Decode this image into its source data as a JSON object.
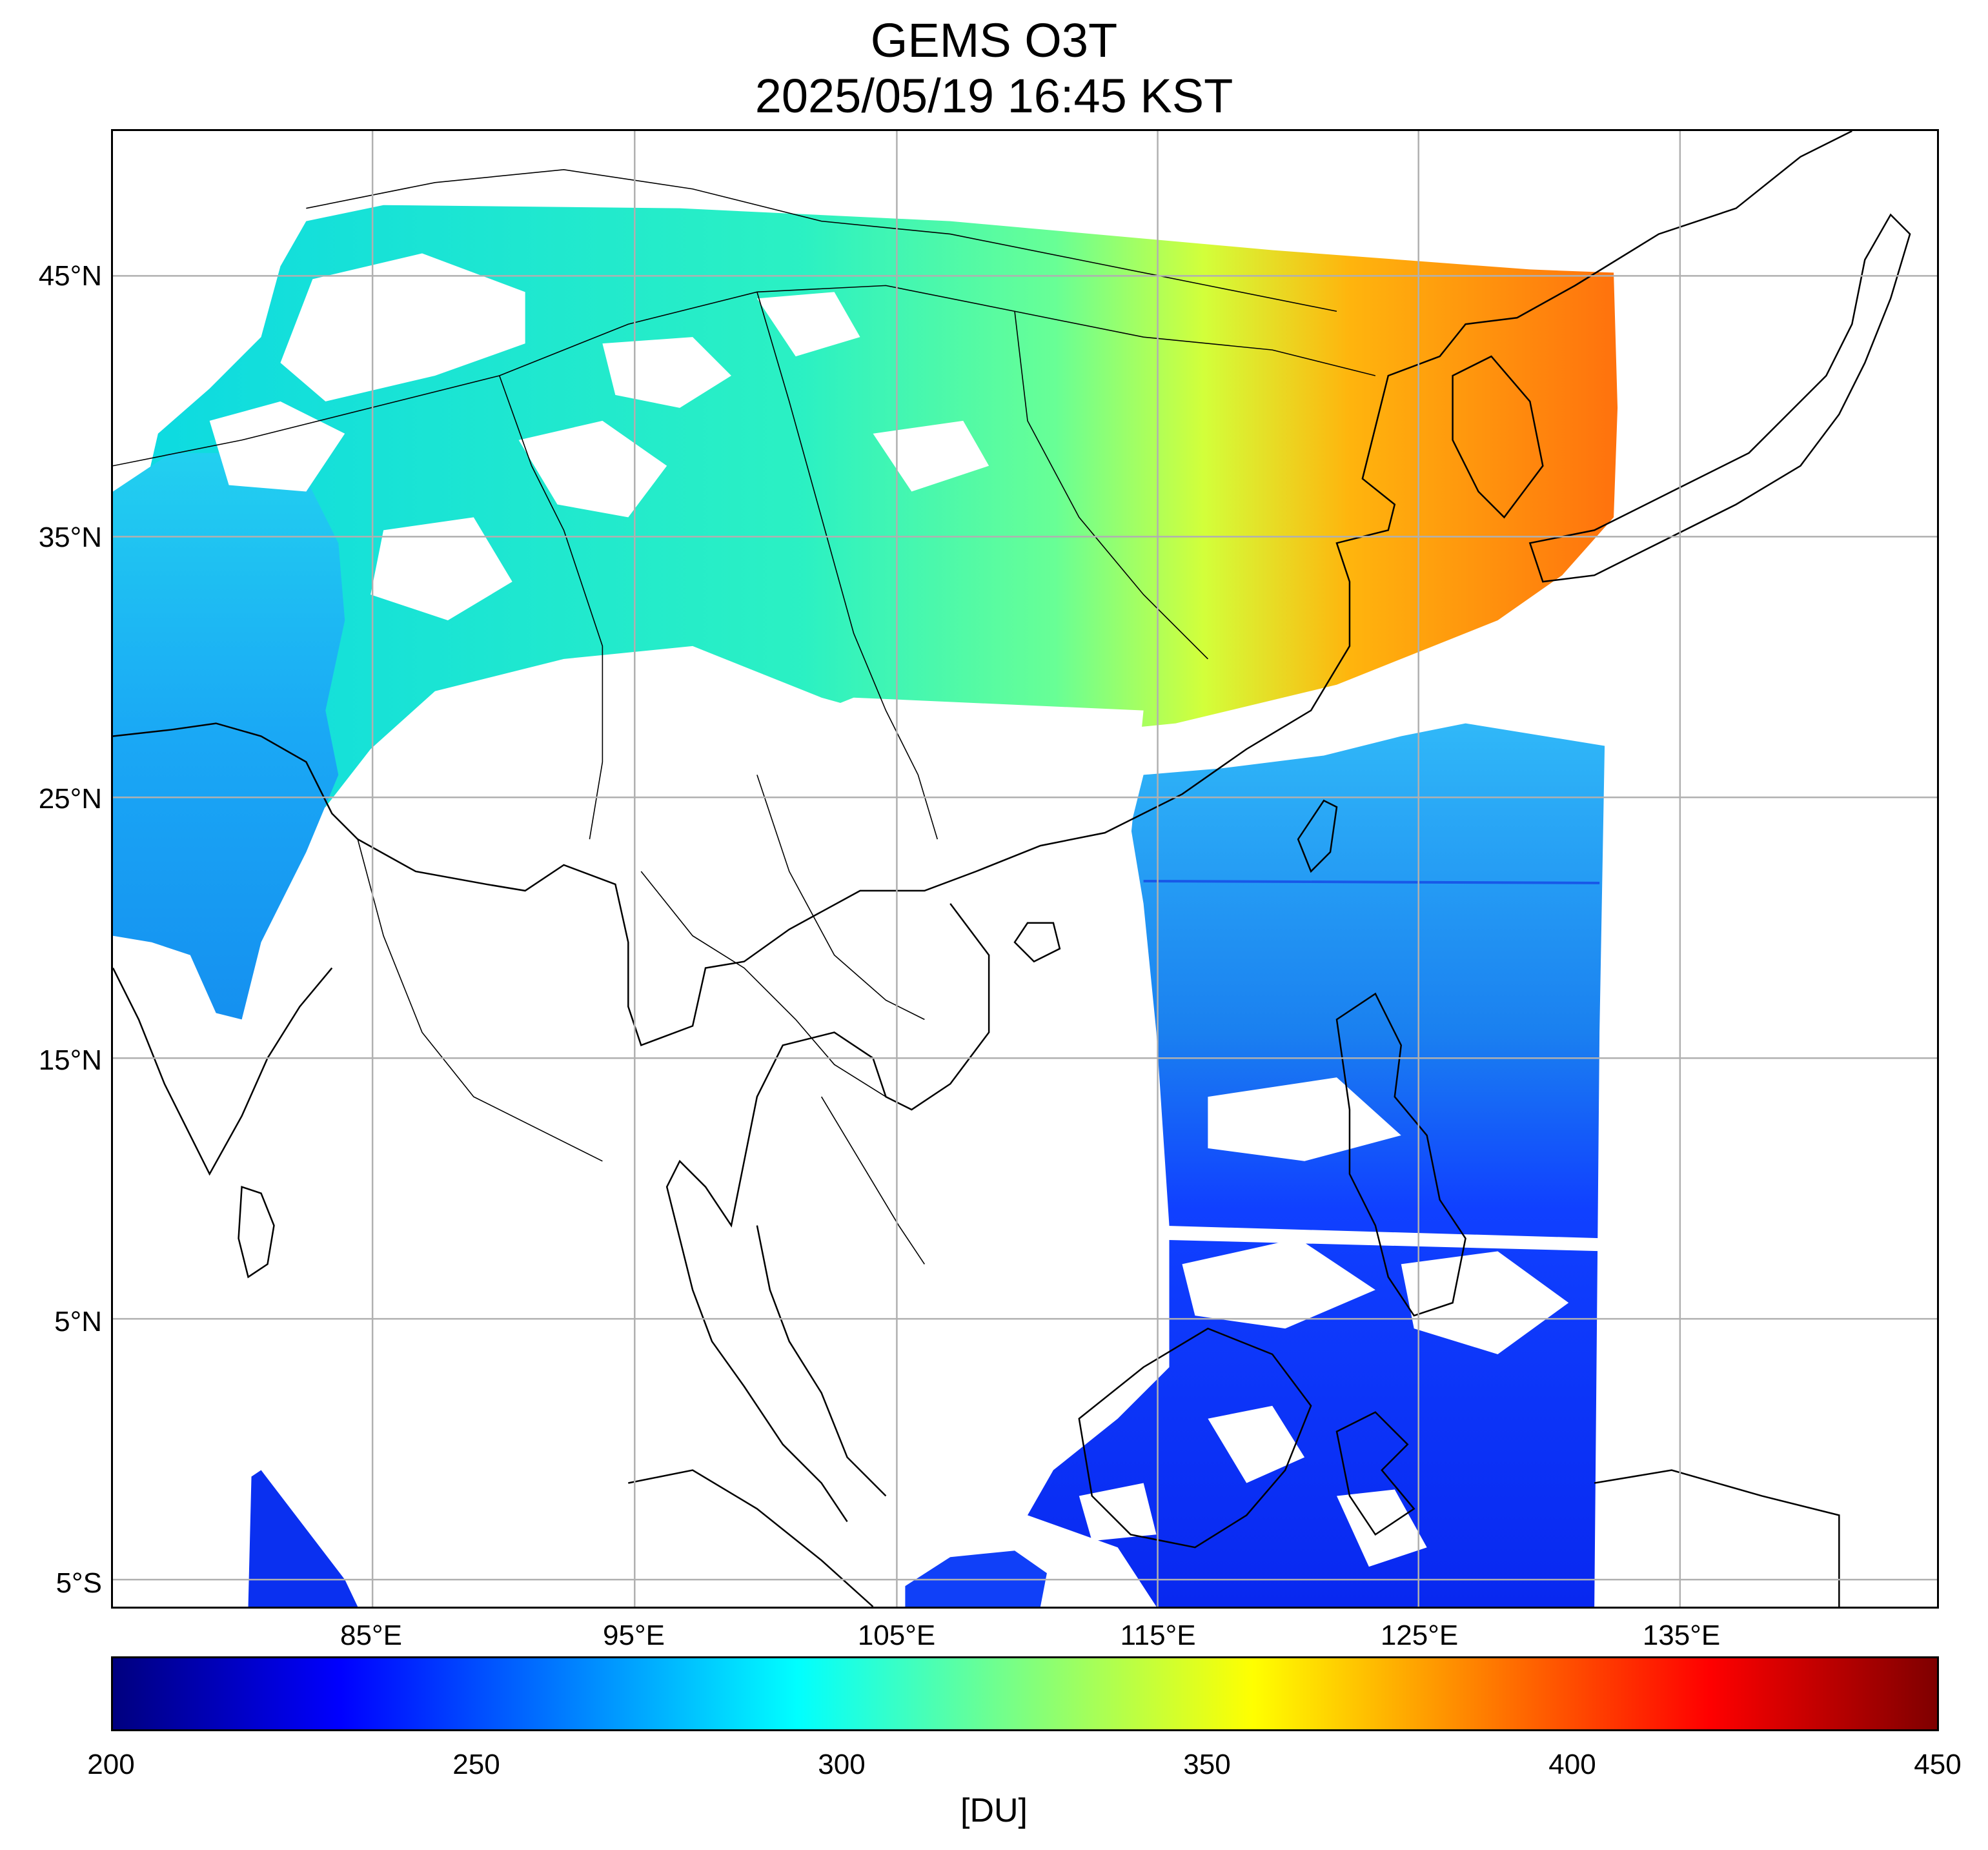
{
  "title": {
    "line1": "GEMS O3T",
    "line2": "2025/05/19 16:45 KST"
  },
  "map": {
    "lat_labels": [
      "45°N",
      "35°N",
      "25°N",
      "15°N",
      "5°N",
      "5°S"
    ],
    "lon_labels": [
      "85°E",
      "95°E",
      "105°E",
      "115°E",
      "125°E",
      "135°E"
    ],
    "grid": true,
    "colors": {
      "grid": "#b0b0b0",
      "coast": "#000000",
      "background": "#ffffff"
    }
  },
  "colorbar": {
    "ticks": [
      "200",
      "250",
      "300",
      "350",
      "400",
      "450"
    ],
    "unit": "[DU]",
    "colormap": "jet",
    "range": [
      200,
      450
    ],
    "colors": [
      "#00007f",
      "#0000ff",
      "#007fff",
      "#00ffff",
      "#7fff7f",
      "#ffff00",
      "#ff7f00",
      "#ff0000",
      "#7f0000"
    ]
  }
}
